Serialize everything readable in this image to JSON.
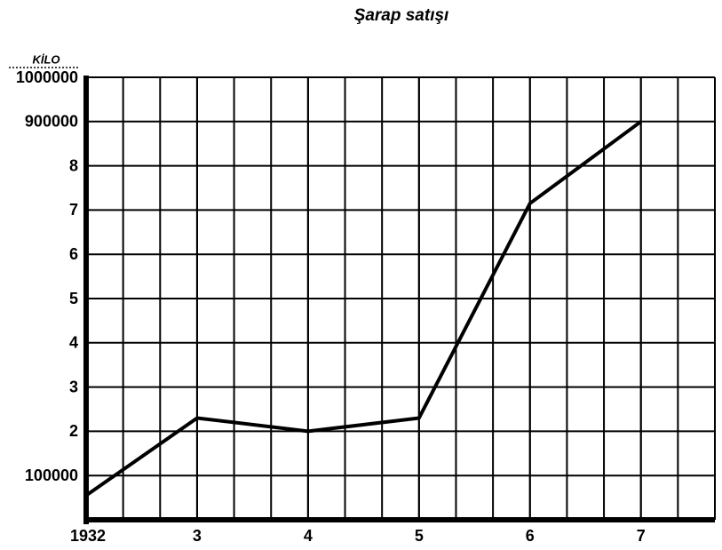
{
  "chart_data": {
    "type": "line",
    "title": "Şarap satışı",
    "y_unit": "KİLO",
    "x": [
      1932,
      1933,
      1934,
      1935,
      1936,
      1937
    ],
    "xlim": [
      1932,
      1937.6667
    ],
    "xticks": [
      1932,
      {
        "value": 1933,
        "label": "3"
      },
      {
        "value": 1934,
        "label": "4"
      },
      {
        "value": 1935,
        "label": "5"
      },
      {
        "value": 1936,
        "label": "6"
      },
      {
        "value": 1937,
        "label": "7"
      }
    ],
    "ylim": [
      0,
      1000000
    ],
    "yticks": [
      {
        "value": 100000,
        "label": "100000"
      },
      {
        "value": 200000,
        "label": "2"
      },
      {
        "value": 300000,
        "label": "3"
      },
      {
        "value": 400000,
        "label": "4"
      },
      {
        "value": 500000,
        "label": "5"
      },
      {
        "value": 600000,
        "label": "6"
      },
      {
        "value": 700000,
        "label": "7"
      },
      {
        "value": 800000,
        "label": "8"
      },
      900000,
      1000000
    ],
    "grid": true,
    "series": [
      {
        "color": "#000000",
        "values": [
          55000,
          230000,
          200000,
          230000,
          715000,
          900000
        ]
      }
    ]
  }
}
